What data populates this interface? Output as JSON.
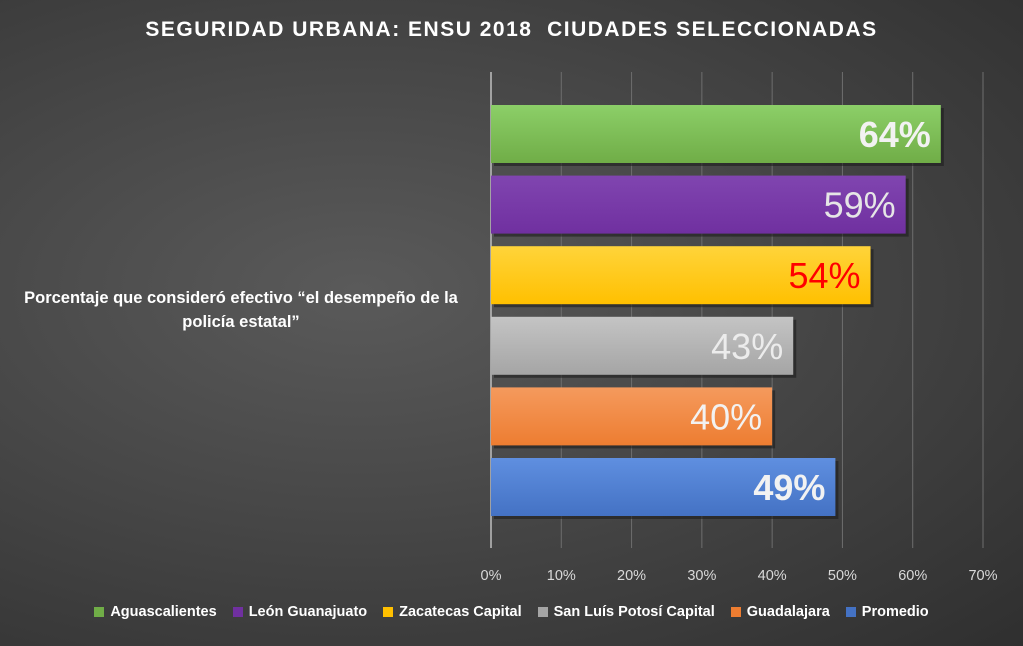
{
  "chart_data": {
    "type": "bar",
    "orientation": "horizontal",
    "title": "SEGURIDAD URBANA: ENSU 2018  CIUDADES SELECCIONADAS",
    "categories": [
      "Porcentaje que consideró efectivo “el desempeño de la policía estatal”"
    ],
    "xlim": [
      0,
      70
    ],
    "xticks": [
      "0%",
      "10%",
      "20%",
      "30%",
      "40%",
      "50%",
      "60%",
      "70%"
    ],
    "grid": true,
    "legend_position": "bottom",
    "series": [
      {
        "name": "Aguascalientes",
        "values": [
          64
        ],
        "label": "64%",
        "color": "#70ad47",
        "color_light": "#8ccf68",
        "label_color": "#f2f2f2",
        "label_bold": true
      },
      {
        "name": "León Guanajuato",
        "values": [
          59
        ],
        "label": "59%",
        "color": "#7030a0",
        "color_light": "#8045b0",
        "label_color": "#e6e6e6",
        "label_bold": false
      },
      {
        "name": "Zacatecas Capital",
        "values": [
          54
        ],
        "label": "54%",
        "color": "#ffc000",
        "color_light": "#ffd43a",
        "label_color": "#ff0000",
        "label_bold": false
      },
      {
        "name": "San Luís Potosí Capital",
        "values": [
          43
        ],
        "label": "43%",
        "color": "#a5a5a5",
        "color_light": "#c4c4c4",
        "label_color": "#ececec",
        "label_bold": false
      },
      {
        "name": "Guadalajara",
        "values": [
          40
        ],
        "label": "40%",
        "color": "#ed7d31",
        "color_light": "#f59a5d",
        "label_color": "#f2f2f2",
        "label_bold": false
      },
      {
        "name": "Promedio",
        "values": [
          49
        ],
        "label": "49%",
        "color": "#4472c4",
        "color_light": "#5f8fe0",
        "label_color": "#f2f2f2",
        "label_bold": true
      }
    ]
  }
}
